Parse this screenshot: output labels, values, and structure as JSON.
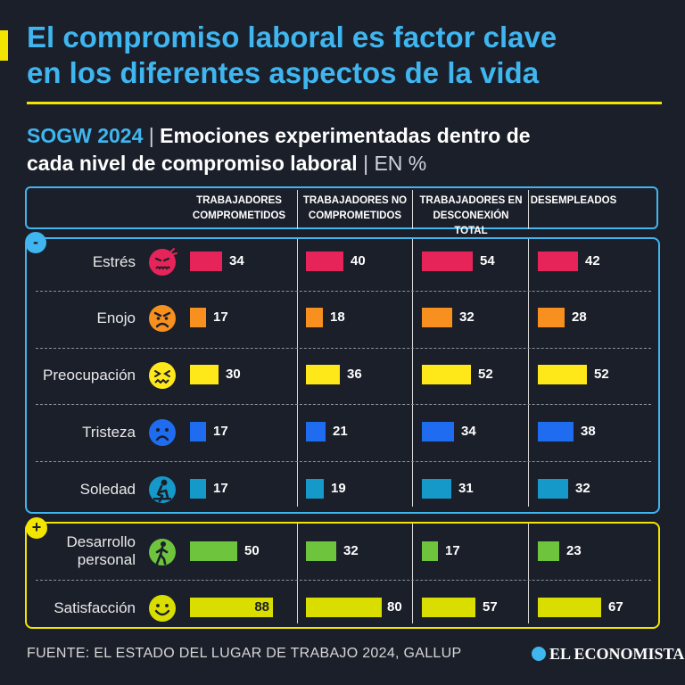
{
  "header": {
    "title_line1": "El compromiso laboral es factor clave",
    "title_line2": "en los diferentes aspectos de la vida",
    "subtitle_tag": "SOGW 2024",
    "subtitle_sep": "|",
    "subtitle_main_1": "Emociones experimentadas dentro de",
    "subtitle_main_2": "cada nivel de compromiso laboral",
    "subtitle_unit": "| EN %"
  },
  "columns": [
    {
      "line1": "TRABAJADORES",
      "line2": "COMPROMETIDOS"
    },
    {
      "line1": "TRABAJADORES NO",
      "line2": "COMPROMETIDOS"
    },
    {
      "line1": "TRABAJADORES EN",
      "line2": "DESCONEXIÓN TOTAL"
    },
    {
      "line1": "DESEMPLEADOS",
      "line2": ""
    }
  ],
  "badges": {
    "negative": "-",
    "positive": "+"
  },
  "colors": {
    "background": "#1b1f2a",
    "accent_blue": "#3fb6ef",
    "accent_yellow": "#f2e600",
    "estres": "#e6245a",
    "enojo": "#f7901e",
    "preocupacion": "#ffe81a",
    "tristeza": "#1f6cf0",
    "soledad": "#1599c9",
    "desarrollo": "#6fc43d",
    "satisfaccion": "#d9dd00"
  },
  "chart_data": {
    "type": "bar",
    "orientation": "horizontal",
    "xlim": [
      0,
      100
    ],
    "categories": [
      "TRABAJADORES COMPROMETIDOS",
      "TRABAJADORES NO COMPROMETIDOS",
      "TRABAJADORES EN DESCONEXIÓN TOTAL",
      "DESEMPLEADOS"
    ],
    "rows": [
      {
        "label": "Estrés",
        "group": "negative",
        "icon": "stressed-face-icon",
        "color": "#e6245a",
        "values": [
          34,
          40,
          54,
          42
        ]
      },
      {
        "label": "Enojo",
        "group": "negative",
        "icon": "angry-face-icon",
        "color": "#f7901e",
        "values": [
          17,
          18,
          32,
          28
        ]
      },
      {
        "label": "Preocupación",
        "group": "negative",
        "icon": "worried-face-icon",
        "color": "#ffe81a",
        "values": [
          30,
          36,
          52,
          52
        ]
      },
      {
        "label": "Tristeza",
        "group": "negative",
        "icon": "sad-face-icon",
        "color": "#1f6cf0",
        "values": [
          17,
          21,
          34,
          38
        ]
      },
      {
        "label": "Soledad",
        "group": "negative",
        "icon": "lonely-person-icon",
        "color": "#1599c9",
        "values": [
          17,
          19,
          31,
          32
        ]
      },
      {
        "label_line1": "Desarrollo",
        "label_line2": "personal",
        "group": "positive",
        "icon": "walking-person-icon",
        "color": "#6fc43d",
        "values": [
          50,
          32,
          17,
          23
        ]
      },
      {
        "label": "Satisfacción",
        "group": "positive",
        "icon": "smiling-face-icon",
        "color": "#d9dd00",
        "values": [
          88,
          80,
          57,
          67
        ]
      }
    ]
  },
  "footer": {
    "source": "FUENTE: EL ESTADO DEL LUGAR DE TRABAJO 2024, GALLUP",
    "logo": "EL ECONOMISTA"
  }
}
